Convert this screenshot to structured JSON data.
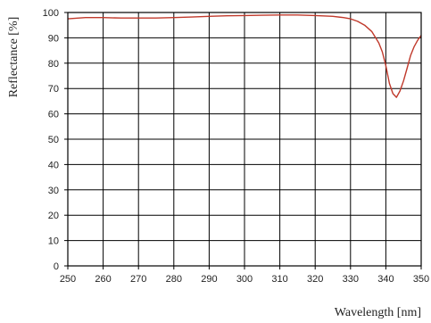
{
  "chart_data": {
    "type": "line",
    "title": "",
    "xlabel": "Wavelength [nm]",
    "ylabel": "Reflectance [%]",
    "xlim": [
      250,
      350
    ],
    "ylim": [
      0,
      100
    ],
    "x_ticks": [
      "250",
      "260",
      "270",
      "280",
      "290",
      "300",
      "310",
      "320",
      "330",
      "340",
      "350"
    ],
    "y_ticks": [
      "0",
      "10",
      "20",
      "30",
      "40",
      "50",
      "60",
      "70",
      "80",
      "90",
      "100"
    ],
    "grid": true,
    "legend": "none",
    "series_color": "#c0392b",
    "series": [
      {
        "x": [
          250,
          255,
          260,
          265,
          270,
          275,
          280,
          285,
          290,
          295,
          300,
          305,
          310,
          315,
          320,
          325,
          328,
          330,
          332,
          334,
          336,
          338,
          339,
          340,
          341,
          342,
          343,
          344,
          345,
          346,
          347,
          348,
          349,
          350
        ],
        "y": [
          97.5,
          98.0,
          98.0,
          97.8,
          97.8,
          97.8,
          98.0,
          98.2,
          98.5,
          98.7,
          98.8,
          98.9,
          99.0,
          99.0,
          98.8,
          98.5,
          98.0,
          97.5,
          96.5,
          95.0,
          92.5,
          88.0,
          84.5,
          79.0,
          72.0,
          68.0,
          66.5,
          69.0,
          73.0,
          78.0,
          83.0,
          86.5,
          89.0,
          91.0
        ]
      }
    ]
  }
}
